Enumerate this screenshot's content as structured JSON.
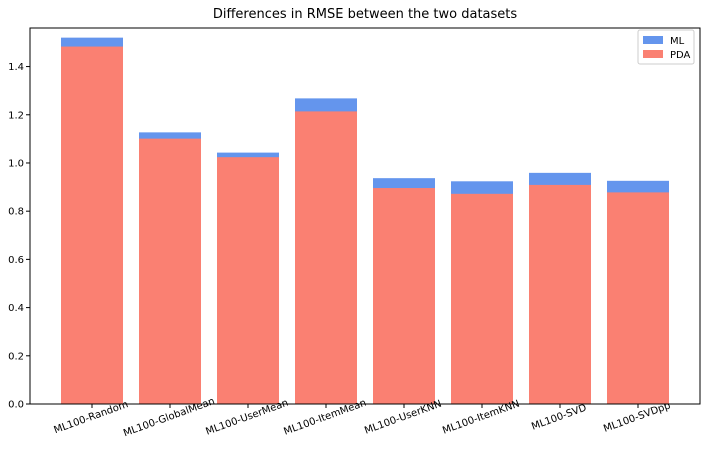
{
  "chart_data": {
    "type": "bar",
    "title": "Differences in RMSE between the two datasets",
    "xlabel": "",
    "ylabel": "",
    "categories": [
      "ML100-Random",
      "ML100-GlobalMean",
      "ML100-UserMean",
      "ML100-ItemMean",
      "ML100-UserKNN",
      "ML100-ItemKNN",
      "ML100-SVD",
      "ML100-SVDpp"
    ],
    "series": [
      {
        "name": "ML",
        "color": "#6495ED",
        "values": [
          1.52,
          1.127,
          1.043,
          1.268,
          0.937,
          0.924,
          0.959,
          0.926
        ]
      },
      {
        "name": "PDA",
        "color": "#FA8072",
        "values": [
          1.483,
          1.101,
          1.024,
          1.214,
          0.896,
          0.872,
          0.909,
          0.878
        ]
      }
    ],
    "ylim": [
      0,
      1.56
    ],
    "yticks": [
      "0.0",
      "0.2",
      "0.4",
      "0.6",
      "0.8",
      "1.0",
      "1.2",
      "1.4"
    ],
    "legend_position": "top-right",
    "grid": false
  }
}
